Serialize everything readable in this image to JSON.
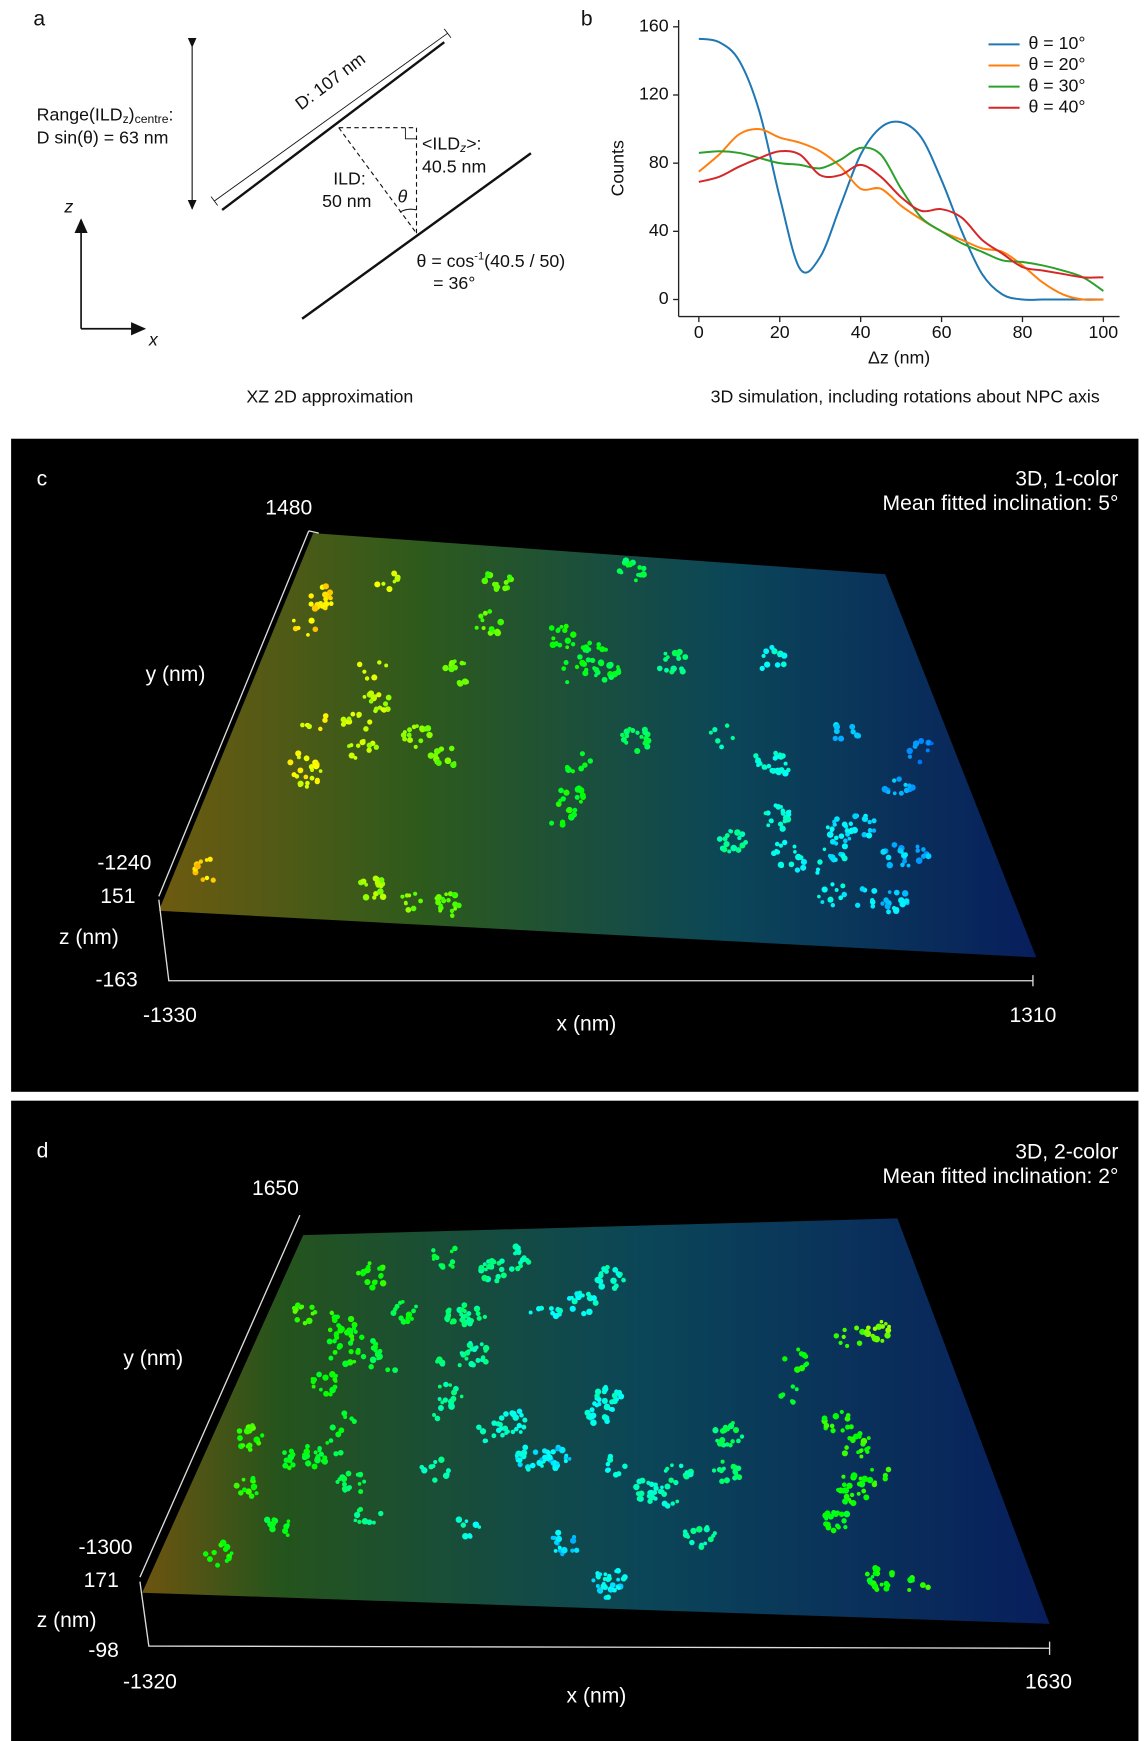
{
  "panel_a": {
    "label": "a",
    "range_1a": "Range(ILD",
    "range_1b": "z",
    "range_1c": ")",
    "range_1d": "centre",
    "range_1e": ":",
    "range_2": "D sin(θ) = 63 nm",
    "d_label": "D: 107 nm",
    "ild_1": "ILD:",
    "ild_2": "50 nm",
    "ildz_1a": "<ILD",
    "ildz_1b": "z",
    "ildz_1c": ">:",
    "ildz_2": "40.5 nm",
    "theta": "θ",
    "eq_1a": "θ = cos",
    "eq_1b": "-1",
    "eq_1c": "(40.5 / 50)",
    "eq_2": "= 36°",
    "z_axis": "z",
    "x_axis": "x",
    "caption": "XZ 2D approximation"
  },
  "panel_b": {
    "label": "b",
    "caption": "3D simulation, including rotations about NPC axis"
  },
  "chart_data": {
    "type": "line",
    "xlabel": "Δz (nm)",
    "ylabel": "Counts",
    "x": [
      0,
      5,
      10,
      15,
      20,
      25,
      30,
      35,
      40,
      45,
      50,
      55,
      60,
      65,
      70,
      75,
      80,
      85,
      90,
      95,
      100
    ],
    "series": [
      {
        "name": "θ = 10°",
        "color": "#1f77b4",
        "values": [
          153,
          151,
          140,
          110,
          60,
          18,
          25,
          55,
          85,
          101,
          104,
          95,
          70,
          40,
          15,
          3,
          0,
          0,
          0,
          0,
          0
        ]
      },
      {
        "name": "θ = 20°",
        "color": "#ff7f0e",
        "values": [
          75,
          85,
          97,
          100,
          95,
          92,
          87,
          78,
          65,
          65,
          55,
          47,
          40,
          35,
          30,
          28,
          20,
          10,
          3,
          0,
          0
        ]
      },
      {
        "name": "θ = 30°",
        "color": "#2ca02c",
        "values": [
          86,
          87,
          86,
          83,
          80,
          79,
          77,
          82,
          89,
          85,
          65,
          48,
          40,
          33,
          28,
          23,
          22,
          20,
          17,
          13,
          5
        ]
      },
      {
        "name": "θ = 40°",
        "color": "#d62728",
        "values": [
          69,
          72,
          78,
          83,
          87,
          85,
          73,
          73,
          79,
          72,
          60,
          52,
          53,
          48,
          35,
          27,
          19,
          17,
          15,
          13,
          13
        ]
      }
    ],
    "xlim": [
      -5,
      104
    ],
    "ylim": [
      -10,
      164
    ],
    "xticks": [
      0,
      20,
      40,
      60,
      80,
      100
    ],
    "yticks": [
      0,
      40,
      80,
      120,
      160
    ],
    "legend": "upper right"
  },
  "panel_c": {
    "label": "c",
    "title_1": "3D, 1-color",
    "title_2": "Mean fitted inclination: 5°",
    "y_max": "1480",
    "y_label": "y (nm)",
    "y_min": "-1240",
    "z_max": "151",
    "z_label": "z (nm)",
    "z_min": "-163",
    "x_min": "-1330",
    "x_label": "x (nm)",
    "x_max": "1310"
  },
  "panel_d": {
    "label": "d",
    "title_1": "3D, 2-color",
    "title_2": "Mean fitted inclination: 2°",
    "y_max": "1650",
    "y_label": "y (nm)",
    "y_min": "-1300",
    "z_max": "171",
    "z_label": "z (nm)",
    "z_min": "-98",
    "x_min": "-1320",
    "x_label": "x (nm)",
    "x_max": "1630"
  }
}
